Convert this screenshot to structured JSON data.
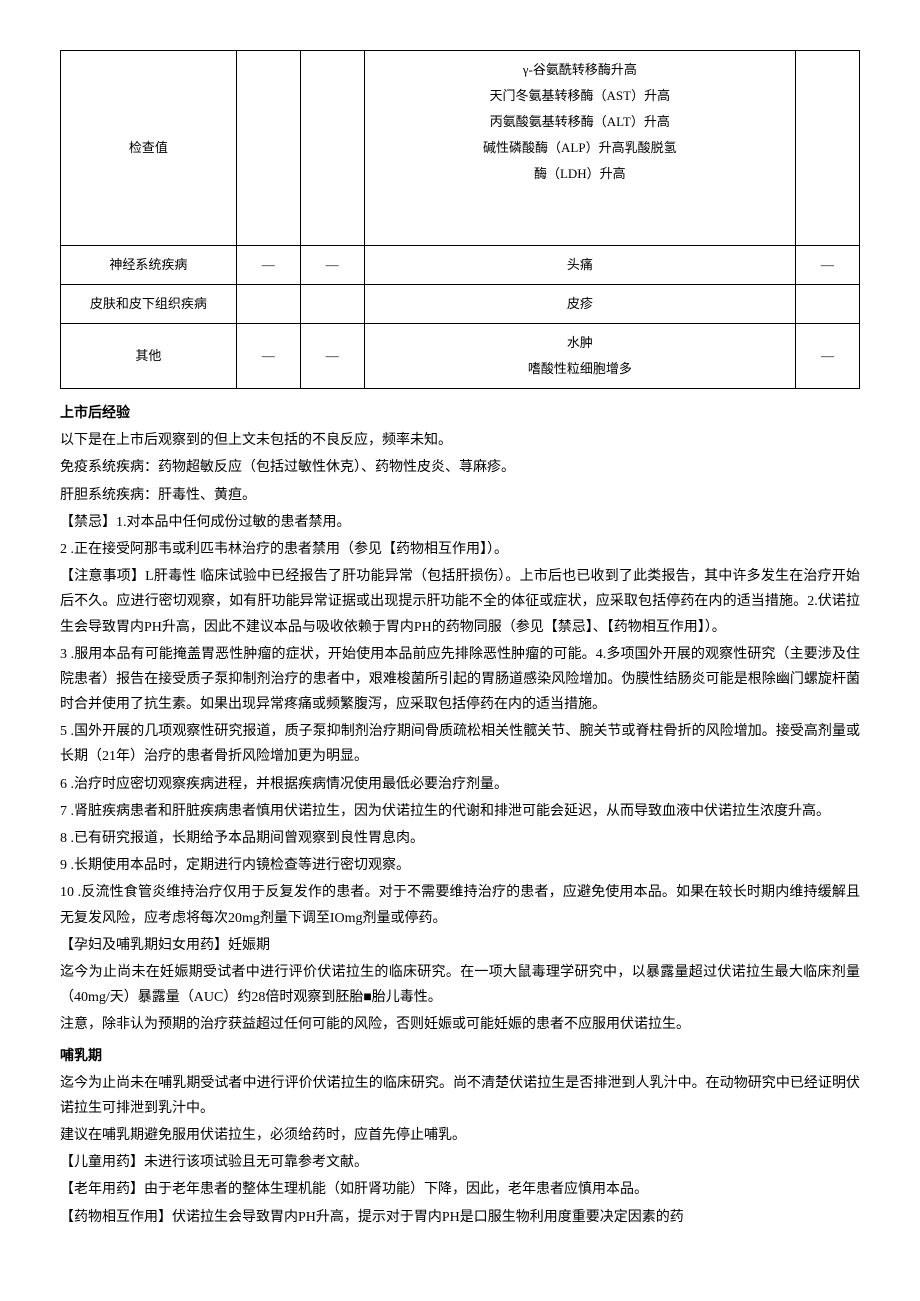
{
  "table": {
    "rows": [
      {
        "c1": "检查值",
        "c2": "",
        "c3": "",
        "c4_lines": [
          "γ-谷氨酰转移酶升高",
          "天门冬氨基转移酶（AST）升高",
          "丙氨酸氨基转移酶（ALT）升高",
          "碱性磷酸酶（ALP）升高乳酸脱氢",
          "酶（LDH）升高"
        ],
        "c5": ""
      },
      {
        "c1": "神经系统疾病",
        "c2": "—",
        "c3": "—",
        "c4_lines": [
          "头痛"
        ],
        "c5": "—"
      },
      {
        "c1": "皮肤和皮下组织疾病",
        "c2": "",
        "c3": "",
        "c4_lines": [
          "皮疹"
        ],
        "c5": ""
      },
      {
        "c1": "其他",
        "c2": "—",
        "c3": "—",
        "c4_lines": [
          "水肿",
          "嗜酸性粒细胞增多"
        ],
        "c5": "—"
      }
    ]
  },
  "postmarket": {
    "title": "上市后经验",
    "p1": "以下是在上市后观察到的但上文未包括的不良反应，频率未知。",
    "p2": "免疫系统疾病：药物超敏反应（包括过敏性休克）、药物性皮炎、荨麻疹。",
    "p3": "肝胆系统疾病：肝毒性、黄疸。"
  },
  "contra": {
    "line1": "【禁忌】1.对本品中任何成份过敏的患者禁用。",
    "line2": "2 .正在接受阿那韦或利匹韦林治疗的患者禁用（参见【药物相互作用】）。"
  },
  "caution": {
    "line1": "【注意事项】L肝毒性 临床试验中已经报告了肝功能异常（包括肝损伤）。上市后也已收到了此类报告，其中许多发生在治疗开始后不久。应进行密切观察，如有肝功能异常证据或出现提示肝功能不全的体征或症状，应采取包括停药在内的适当措施。2.伏诺拉生会导致胃内PH升高，因此不建议本品与吸收依赖于胃内PH的药物同服（参见【禁忌】、【药物相互作用】）。",
    "item3": "3 .服用本品有可能掩盖胃恶性肿瘤的症状，开始使用本品前应先排除恶性肿瘤的可能。4.多项国外开展的观察性研究（主要涉及住院患者）报告在接受质子泵抑制剂治疗的患者中，艰难梭菌所引起的胃肠道感染风险增加。伪膜性结肠炎可能是根除幽门螺旋杆菌时合并使用了抗生素。如果出现异常疼痛或频繁腹泻，应采取包括停药在内的适当措施。",
    "item5": "5 .国外开展的几项观察性研究报道，质子泵抑制剂治疗期间骨质疏松相关性髋关节、腕关节或脊柱骨折的风险增加。接受高剂量或长期（21年）治疗的患者骨折风险增加更为明显。",
    "item6": "6 .治疗时应密切观察疾病进程，并根据疾病情况使用最低必要治疗剂量。",
    "item7": "7 .肾脏疾病患者和肝脏疾病患者慎用伏诺拉生，因为伏诺拉生的代谢和排泄可能会延迟，从而导致血液中伏诺拉生浓度升高。",
    "item8": "8 .已有研究报道，长期给予本品期间曾观察到良性胃息肉。",
    "item9": "9 .长期使用本品时，定期进行内镜检查等进行密切观察。",
    "item10": "10 .反流性食管炎维持治疗仅用于反复发作的患者。对于不需要维持治疗的患者，应避免使用本品。如果在较长时期内维持缓解且无复发风险，应考虑将每次20mg剂量下调至IOmg剂量或停药。"
  },
  "pregnancy": {
    "title": "【孕妇及哺乳期妇女用药】妊娠期",
    "p1": "迄今为止尚未在妊娠期受试者中进行评价伏诺拉生的临床研究。在一项大鼠毒理学研究中，以暴露量超过伏诺拉生最大临床剂量（40mg/天）暴露量（AUC）约28倍时观察到胚胎■胎儿毒性。",
    "p2": "注意，除非认为预期的治疗获益超过任何可能的风险，否则妊娠或可能妊娠的患者不应服用伏诺拉生。"
  },
  "lactation": {
    "title": "哺乳期",
    "p1": "迄今为止尚未在哺乳期受试者中进行评价伏诺拉生的临床研究。尚不清楚伏诺拉生是否排泄到人乳汁中。在动物研究中已经证明伏诺拉生可排泄到乳汁中。",
    "p2": "建议在哺乳期避免服用伏诺拉生，必须给药时，应首先停止哺乳。"
  },
  "children": "【儿童用药】未进行该项试验且无可靠参考文献。",
  "elderly": "【老年用药】由于老年患者的整体生理机能（如肝肾功能）下降，因此，老年患者应慎用本品。",
  "interaction": "【药物相互作用】伏诺拉生会导致胃内PH升高，提示对于胃内PH是口服生物利用度重要决定因素的药"
}
